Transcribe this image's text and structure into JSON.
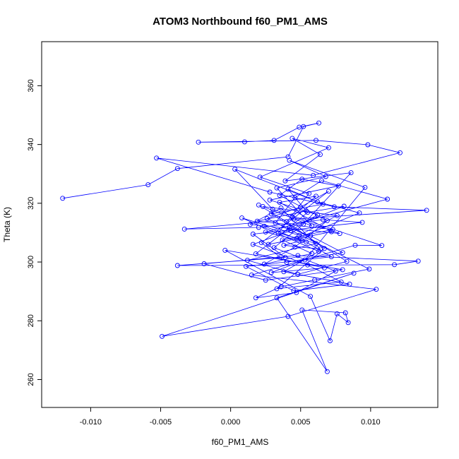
{
  "chart_data": {
    "type": "line",
    "title": "ATOM3 Northbound f60_PM1_AMS",
    "xlabel": "f60_PM1_AMS",
    "ylabel": "Theta (K)",
    "xlim": [
      -0.0135,
      0.0148
    ],
    "ylim": [
      250.5,
      375
    ],
    "xticks": [
      -0.01,
      -0.005,
      0.0,
      0.005,
      0.01
    ],
    "xtick_labels": [
      "-0.010",
      "-0.005",
      "0.000",
      "0.005",
      "0.010"
    ],
    "yticks": [
      260,
      280,
      300,
      320,
      340,
      360
    ],
    "ytick_labels": [
      "260",
      "280",
      "300",
      "320",
      "340",
      "360"
    ],
    "grid": false,
    "markers": "open-circle",
    "series": [
      {
        "color": "#0000ff",
        "points": [
          [
            -0.012,
            321.7
          ],
          [
            -0.0059,
            326.3
          ],
          [
            -0.0038,
            331.8
          ],
          [
            0.0041,
            335.8
          ],
          [
            0.0052,
            346.1
          ],
          [
            0.0063,
            347.3
          ],
          [
            0.0049,
            345.9
          ],
          [
            0.0031,
            341.4
          ],
          [
            0.001,
            340.9
          ],
          [
            -0.0023,
            340.8
          ],
          [
            0.0061,
            341.4
          ],
          [
            0.0098,
            339.9
          ],
          [
            0.0121,
            337.2
          ],
          [
            0.0059,
            329.5
          ],
          [
            -0.0053,
            335.4
          ],
          [
            0.0028,
            323.8
          ],
          [
            0.0074,
            318.8
          ],
          [
            0.014,
            317.6
          ],
          [
            0.0045,
            314.6
          ],
          [
            -0.0033,
            311.2
          ],
          [
            0.002,
            311.8
          ],
          [
            0.0066,
            314.4
          ],
          [
            0.0094,
            313.5
          ],
          [
            0.0016,
            309.5
          ],
          [
            0.0039,
            301.6
          ],
          [
            -0.0038,
            298.8
          ],
          [
            0.0117,
            299.1
          ],
          [
            0.0134,
            300.3
          ],
          [
            0.0048,
            302.2
          ],
          [
            -0.0019,
            299.4
          ],
          [
            0.0025,
            293.8
          ],
          [
            0.008,
            297.4
          ],
          [
            -0.0004,
            304.0
          ],
          [
            0.0057,
            288.3
          ],
          [
            0.0071,
            273.2
          ],
          [
            0.0076,
            282.4
          ],
          [
            0.0084,
            279.4
          ],
          [
            0.0082,
            282.7
          ],
          [
            0.0051,
            283.7
          ],
          [
            0.0069,
            262.7
          ],
          [
            0.0033,
            287.8
          ],
          [
            0.0088,
            296.2
          ],
          [
            -0.0049,
            274.7
          ],
          [
            0.0041,
            281.5
          ],
          [
            0.0104,
            290.7
          ],
          [
            0.0015,
            295.6
          ],
          [
            0.0089,
            305.7
          ],
          [
            0.0108,
            305.6
          ],
          [
            0.003,
            318.0
          ],
          [
            0.0003,
            331.6
          ],
          [
            0.0062,
            320.5
          ],
          [
            0.0092,
            316.7
          ],
          [
            0.0047,
            308.0
          ],
          [
            0.0024,
            312.2
          ],
          [
            0.0051,
            307.3
          ],
          [
            0.0038,
            305.7
          ],
          [
            0.0064,
            304.4
          ],
          [
            0.0036,
            318.4
          ],
          [
            0.0014,
            312.8
          ],
          [
            0.0078,
            309.7
          ],
          [
            0.0044,
            315.4
          ],
          [
            0.0061,
            322.4
          ],
          [
            0.0035,
            320.3
          ],
          [
            0.0072,
            310.3
          ],
          [
            0.0027,
            306.0
          ],
          [
            0.0055,
            316.9
          ],
          [
            0.0081,
            319.0
          ],
          [
            0.0042,
            311.6
          ],
          [
            0.0018,
            302.8
          ],
          [
            0.0067,
            298.0
          ],
          [
            0.0029,
            296.4
          ],
          [
            0.0053,
            300.7
          ],
          [
            0.0096,
            325.4
          ],
          [
            0.0042,
            334.6
          ],
          [
            0.0068,
            329.1
          ],
          [
            0.0033,
            325.2
          ],
          [
            0.0058,
            312.3
          ],
          [
            0.0023,
            318.9
          ],
          [
            0.0076,
            315.8
          ],
          [
            0.0049,
            309.1
          ],
          [
            0.0008,
            315.0
          ],
          [
            0.0063,
            303.6
          ],
          [
            0.0038,
            296.7
          ],
          [
            0.0085,
            292.5
          ],
          [
            0.0045,
            290.2
          ],
          [
            0.0011,
            298.5
          ],
          [
            0.0072,
            301.8
          ],
          [
            0.0054,
            306.8
          ],
          [
            0.0025,
            310.2
          ],
          [
            0.0112,
            321.4
          ],
          [
            0.0065,
            327.7
          ],
          [
            0.0046,
            321.9
          ],
          [
            0.0032,
            313.3
          ],
          [
            0.0057,
            308.9
          ],
          [
            0.008,
            303.2
          ],
          [
            0.004,
            299.9
          ],
          [
            0.0022,
            306.6
          ],
          [
            0.007,
            324.1
          ],
          [
            0.005,
            318.7
          ],
          [
            0.0026,
            314.8
          ],
          [
            0.0099,
            297.6
          ],
          [
            0.006,
            293.9
          ],
          [
            0.0036,
            291.6
          ],
          [
            0.0018,
            287.8
          ],
          [
            0.0047,
            289.6
          ],
          [
            0.0075,
            296.9
          ],
          [
            0.0031,
            304.9
          ],
          [
            0.0052,
            312.9
          ],
          [
            0.0086,
            330.4
          ],
          [
            0.0039,
            327.6
          ],
          [
            0.0064,
            336.6
          ],
          [
            0.0044,
            342.1
          ],
          [
            0.007,
            338.9
          ],
          [
            0.0021,
            328.9
          ],
          [
            0.0056,
            323.3
          ],
          [
            0.0034,
            309.9
          ],
          [
            0.0061,
            306.3
          ],
          [
            0.0012,
            300.6
          ],
          [
            0.0048,
            295.8
          ],
          [
            0.0083,
            300.2
          ],
          [
            0.0029,
            316.4
          ],
          [
            0.0066,
            319.7
          ],
          [
            0.0041,
            324.8
          ],
          [
            0.0054,
            317.4
          ],
          [
            0.0019,
            313.9
          ],
          [
            0.0073,
            311.1
          ],
          [
            0.0037,
            307.5
          ],
          [
            0.0058,
            302.9
          ],
          [
            0.0024,
            299.3
          ],
          [
            0.0046,
            305.1
          ],
          [
            0.0069,
            314.1
          ],
          [
            0.0035,
            322.7
          ],
          [
            0.0051,
            328.2
          ],
          [
            0.0077,
            325.9
          ],
          [
            0.0028,
            321.1
          ],
          [
            0.0062,
            316.1
          ],
          [
            0.0043,
            310.7
          ],
          [
            0.0016,
            306.0
          ],
          [
            0.0055,
            299.0
          ],
          [
            0.0079,
            293.2
          ],
          [
            0.0033,
            290.9
          ],
          [
            0.0067,
            304.6
          ],
          [
            0.004,
            313.7
          ],
          [
            0.002,
            319.4
          ]
        ]
      }
    ]
  }
}
